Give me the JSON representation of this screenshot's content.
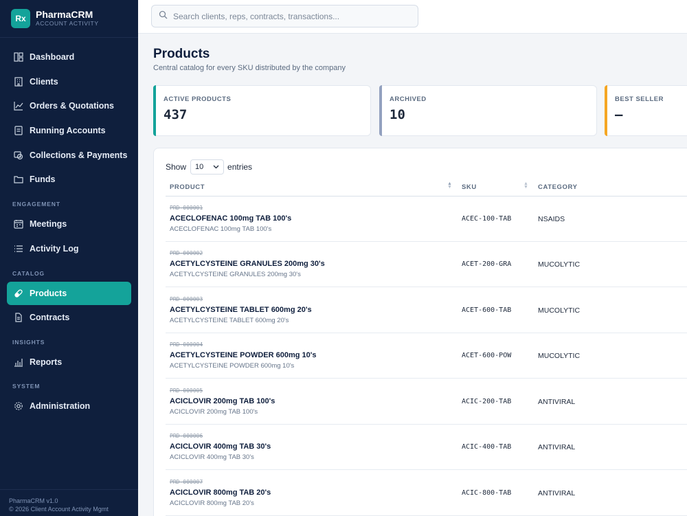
{
  "brand": {
    "logo": "Rx",
    "name": "PharmaCRM",
    "subtitle": "ACCOUNT ACTIVITY"
  },
  "nav": {
    "items": [
      {
        "label": "Dashboard",
        "icon": "dashboard-icon"
      },
      {
        "label": "Clients",
        "icon": "building-icon"
      },
      {
        "label": "Orders & Quotations",
        "icon": "chart-line-icon"
      },
      {
        "label": "Running Accounts",
        "icon": "ledger-icon"
      },
      {
        "label": "Collections & Payments",
        "icon": "money-icon"
      },
      {
        "label": "Funds",
        "icon": "folder-icon"
      },
      {
        "label": "Meetings",
        "icon": "calendar-icon"
      },
      {
        "label": "Activity Log",
        "icon": "list-icon"
      },
      {
        "label": "Products",
        "icon": "pill-icon",
        "active": true
      },
      {
        "label": "Contracts",
        "icon": "document-icon"
      },
      {
        "label": "Reports",
        "icon": "bar-chart-icon"
      },
      {
        "label": "Administration",
        "icon": "gear-icon"
      }
    ],
    "sections": {
      "engagement": "ENGAGEMENT",
      "catalog": "CATALOG",
      "insights": "INSIGHTS",
      "system": "SYSTEM"
    }
  },
  "footer": {
    "version": "PharmaCRM v1.0",
    "copyright": "© 2026 Client Account Activity Mgmt"
  },
  "search": {
    "placeholder": "Search clients, reps, contracts, transactions..."
  },
  "page": {
    "title": "Products",
    "subtitle": "Central catalog for every SKU distributed by the company"
  },
  "stats": [
    {
      "label": "ACTIVE PRODUCTS",
      "value": "437",
      "color": "#14a39a"
    },
    {
      "label": "ARCHIVED",
      "value": "10",
      "color": "#93a1bf"
    },
    {
      "label": "BEST SELLER",
      "value": "—",
      "color": "#f5a623"
    }
  ],
  "table": {
    "show_label": "Show",
    "page_size": "10",
    "entries_label": "entries",
    "columns": {
      "product": "PRODUCT",
      "sku": "SKU",
      "category": "CATEGORY"
    },
    "rows": [
      {
        "id": "PRD-000001",
        "name": "ACECLOFENAC 100mg TAB 100's",
        "desc": "ACECLOFENAC 100mg TAB 100's",
        "sku": "ACEC-100-TAB",
        "category": "NSAIDS"
      },
      {
        "id": "PRD-000002",
        "name": "ACETYLCYSTEINE GRANULES 200mg 30's",
        "desc": "ACETYLCYSTEINE GRANULES 200mg 30's",
        "sku": "ACET-200-GRA",
        "category": "MUCOLYTIC"
      },
      {
        "id": "PRD-000003",
        "name": "ACETYLCYSTEINE TABLET 600mg 20's",
        "desc": "ACETYLCYSTEINE TABLET 600mg 20's",
        "sku": "ACET-600-TAB",
        "category": "MUCOLYTIC"
      },
      {
        "id": "PRD-000004",
        "name": "ACETYLCYSTEINE POWDER 600mg 10's",
        "desc": "ACETYLCYSTEINE POWDER 600mg 10's",
        "sku": "ACET-600-POW",
        "category": "MUCOLYTIC"
      },
      {
        "id": "PRD-000005",
        "name": "ACICLOVIR 200mg TAB 100's",
        "desc": "ACICLOVIR 200mg TAB 100's",
        "sku": "ACIC-200-TAB",
        "category": "ANTIVIRAL"
      },
      {
        "id": "PRD-000006",
        "name": "ACICLOVIR 400mg TAB 30's",
        "desc": "ACICLOVIR 400mg TAB 30's",
        "sku": "ACIC-400-TAB",
        "category": "ANTIVIRAL"
      },
      {
        "id": "PRD-000007",
        "name": "ACICLOVIR 800mg TAB 20's",
        "desc": "ACICLOVIR 800mg TAB 20's",
        "sku": "ACIC-800-TAB",
        "category": "ANTIVIRAL"
      }
    ]
  }
}
